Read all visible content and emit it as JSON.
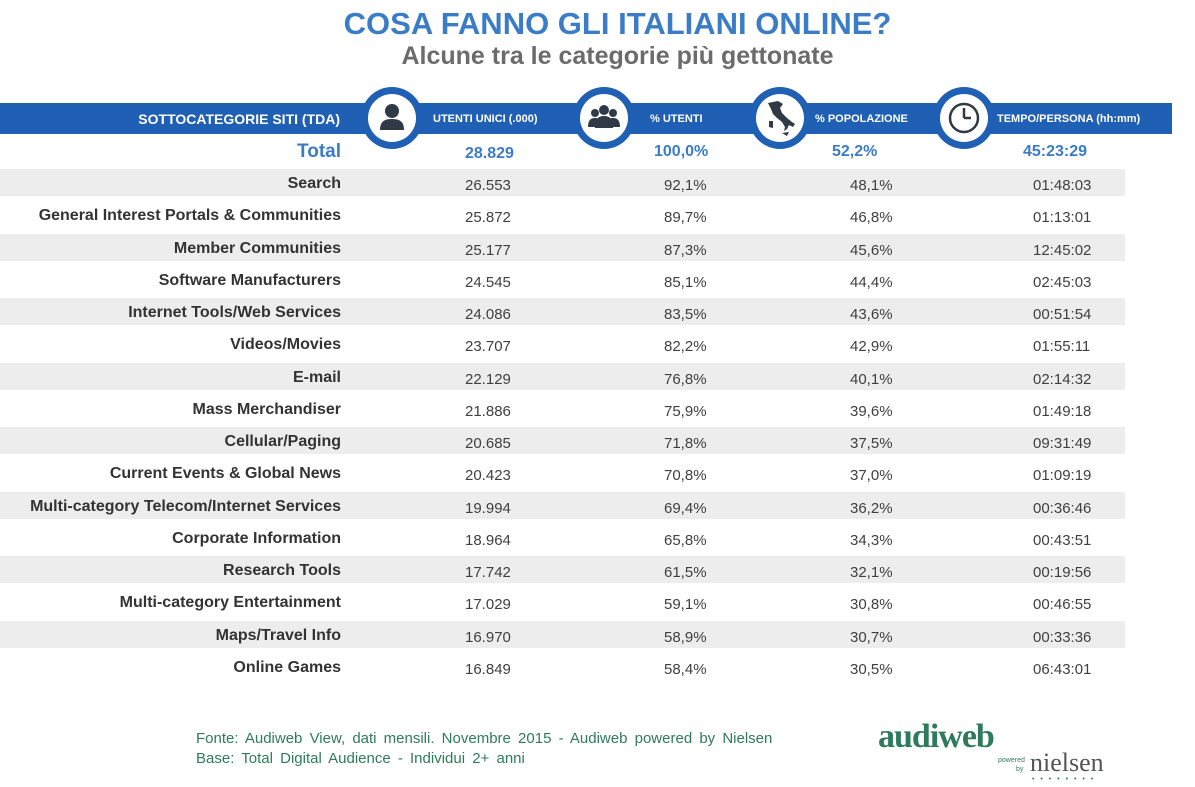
{
  "title": "COSA FANNO GLI ITALIANI ONLINE?",
  "subtitle": "Alcune tra le categorie più gettonate",
  "colors": {
    "header_blue": "#1f5fb4",
    "title_blue": "#3a7cc6",
    "footer_green": "#2e7b5c",
    "row_shade": "#ededed"
  },
  "headers": {
    "category": "SOTTOCATEGORIE SITI  (TDA)",
    "users": "UTENTI UNICI (.000)",
    "pct_users": "% UTENTI",
    "pct_population": "% POPOLAZIONE",
    "time": "TEMPO/PERSONA  (hh:mm)"
  },
  "icons": {
    "users": "person-icon",
    "pct_users": "group-icon",
    "pct_population": "italy-map-icon",
    "time": "clock-icon"
  },
  "chart_data": {
    "type": "table",
    "columns": [
      "SOTTOCATEGORIE SITI  (TDA)",
      "UTENTI UNICI (.000)",
      "% UTENTI",
      "% POPOLAZIONE",
      "TEMPO/PERSONA  (hh:mm)"
    ],
    "total": {
      "label": "Total",
      "users": "28.829",
      "pct_users": "100,0%",
      "pct_population": "52,2%",
      "time": "45:23:29"
    },
    "rows": [
      {
        "label": "Search",
        "users": "26.553",
        "pct_users": "92,1%",
        "pct_population": "48,1%",
        "time": "01:48:03"
      },
      {
        "label": "General Interest Portals & Communities",
        "users": "25.872",
        "pct_users": "89,7%",
        "pct_population": "46,8%",
        "time": "01:13:01"
      },
      {
        "label": "Member Communities",
        "users": "25.177",
        "pct_users": "87,3%",
        "pct_population": "45,6%",
        "time": "12:45:02"
      },
      {
        "label": "Software Manufacturers",
        "users": "24.545",
        "pct_users": "85,1%",
        "pct_population": "44,4%",
        "time": "02:45:03"
      },
      {
        "label": "Internet Tools/Web Services",
        "users": "24.086",
        "pct_users": "83,5%",
        "pct_population": "43,6%",
        "time": "00:51:54"
      },
      {
        "label": "Videos/Movies",
        "users": "23.707",
        "pct_users": "82,2%",
        "pct_population": "42,9%",
        "time": "01:55:11"
      },
      {
        "label": "E-mail",
        "users": "22.129",
        "pct_users": "76,8%",
        "pct_population": "40,1%",
        "time": "02:14:32"
      },
      {
        "label": "Mass Merchandiser",
        "users": "21.886",
        "pct_users": "75,9%",
        "pct_population": "39,6%",
        "time": "01:49:18"
      },
      {
        "label": "Cellular/Paging",
        "users": "20.685",
        "pct_users": "71,8%",
        "pct_population": "37,5%",
        "time": "09:31:49"
      },
      {
        "label": "Current Events & Global News",
        "users": "20.423",
        "pct_users": "70,8%",
        "pct_population": "37,0%",
        "time": "01:09:19"
      },
      {
        "label": "Multi-category Telecom/Internet Services",
        "users": "19.994",
        "pct_users": "69,4%",
        "pct_population": "36,2%",
        "time": "00:36:46"
      },
      {
        "label": "Corporate Information",
        "users": "18.964",
        "pct_users": "65,8%",
        "pct_population": "34,3%",
        "time": "00:43:51"
      },
      {
        "label": "Research Tools",
        "users": "17.742",
        "pct_users": "61,5%",
        "pct_population": "32,1%",
        "time": "00:19:56"
      },
      {
        "label": "Multi-category Entertainment",
        "users": "17.029",
        "pct_users": "59,1%",
        "pct_population": "30,8%",
        "time": "00:46:55"
      },
      {
        "label": "Maps/Travel Info",
        "users": "16.970",
        "pct_users": "58,9%",
        "pct_population": "30,7%",
        "time": "00:33:36"
      },
      {
        "label": "Online Games",
        "users": "16.849",
        "pct_users": "58,4%",
        "pct_population": "30,5%",
        "time": "06:43:01"
      }
    ]
  },
  "footer": {
    "source": "Fonte: Audiweb View, dati mensili. Novembre 2015 - Audiweb powered by Nielsen",
    "base": "Base: Total Digital Audience - Individui 2+ anni"
  },
  "logo": {
    "audiweb": "audiweb",
    "powered": "powered",
    "by": "by",
    "nielsen": "nielsen"
  }
}
